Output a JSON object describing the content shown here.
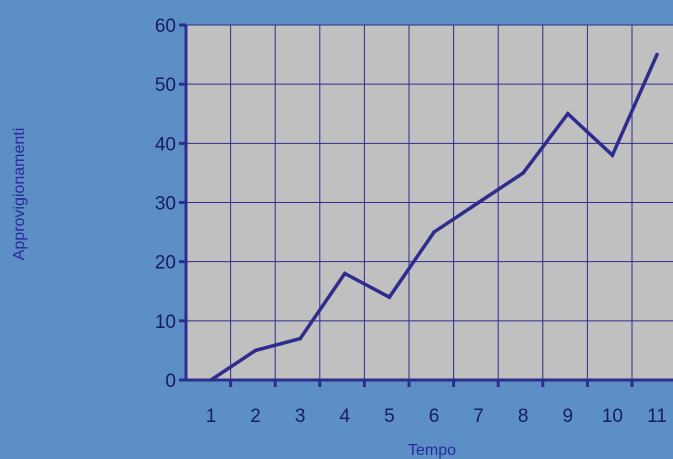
{
  "colors": {
    "background": "#5b8fc6",
    "plot_area": "#c0c0c0",
    "line": "#2e2c8c",
    "axis_text": "#1a1a66",
    "axis_title": "#2a2a9a"
  },
  "chart_data": {
    "type": "line",
    "title": "",
    "xlabel": "Tempo",
    "ylabel": "Approvigionamenti",
    "x": [
      1,
      2,
      3,
      4,
      5,
      6,
      7,
      8,
      9,
      10,
      11
    ],
    "x_tick_labels": [
      "1",
      "2",
      "3",
      "4",
      "5",
      "6",
      "7",
      "8",
      "9",
      "10",
      "11"
    ],
    "y_ticks": [
      0,
      10,
      20,
      30,
      40,
      50,
      60
    ],
    "ylim": [
      0,
      60
    ],
    "grid": true,
    "legend": "none",
    "series": [
      {
        "values": [
          0,
          5,
          7,
          18,
          14,
          25,
          30,
          35,
          45,
          38,
          55
        ]
      }
    ]
  }
}
